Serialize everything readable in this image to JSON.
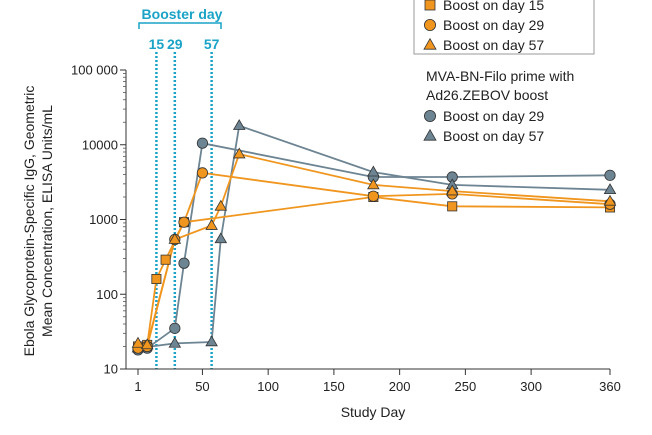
{
  "chart_data": {
    "type": "line",
    "title": "",
    "xlabel": "Study Day",
    "ylabel_line1": "Ebola Glycoprotein-Specific IgG, Geometric",
    "ylabel_line2": "Mean Concentration, ELISA Units/mL",
    "x_scale": "linear",
    "y_scale": "log",
    "xlim": [
      1,
      360
    ],
    "ylim": [
      10,
      100000
    ],
    "x_ticks": [
      1,
      50,
      100,
      150,
      200,
      250,
      300,
      360
    ],
    "x_tick_labels": [
      "1",
      "50",
      "100",
      "150",
      "200",
      "250",
      "300",
      "360"
    ],
    "y_ticks": [
      10,
      100,
      1000,
      10000,
      100000
    ],
    "y_tick_labels": [
      "10",
      "100",
      "1000",
      "10000",
      "100 000"
    ],
    "booster": {
      "title": "Booster day",
      "days": [
        15,
        29,
        57
      ],
      "labels": [
        "15",
        "29",
        "57"
      ],
      "color": "#1aa3c7"
    },
    "legend": {
      "group_title_line1": "MVA-BN-Filo prime with",
      "group_title_line2": "Ad26.ZEBOV boost"
    },
    "series": [
      {
        "name": "Boost on day 15",
        "color": "#f0961e",
        "marker": "square",
        "points": [
          {
            "x": 1,
            "y": 20
          },
          {
            "x": 8,
            "y": 21
          },
          {
            "x": 15,
            "y": 160
          },
          {
            "x": 22,
            "y": 290
          },
          {
            "x": 36,
            "y": 920
          },
          {
            "x": 180,
            "y": 2000
          },
          {
            "x": 240,
            "y": 1500
          },
          {
            "x": 360,
            "y": 1450
          }
        ]
      },
      {
        "name": "Boost on day 29",
        "color": "#f0961e",
        "marker": "circle",
        "points": [
          {
            "x": 1,
            "y": 19
          },
          {
            "x": 8,
            "y": 20
          },
          {
            "x": 29,
            "y": 540
          },
          {
            "x": 36,
            "y": 920
          },
          {
            "x": 50,
            "y": 4200
          },
          {
            "x": 180,
            "y": 2050
          },
          {
            "x": 240,
            "y": 2200
          },
          {
            "x": 360,
            "y": 1600
          }
        ]
      },
      {
        "name": "Boost on day 57",
        "color": "#f0961e",
        "marker": "triangle",
        "points": [
          {
            "x": 1,
            "y": 22
          },
          {
            "x": 8,
            "y": 21
          },
          {
            "x": 29,
            "y": 540
          },
          {
            "x": 57,
            "y": 830
          },
          {
            "x": 64,
            "y": 1500
          },
          {
            "x": 78,
            "y": 7500
          },
          {
            "x": 180,
            "y": 2900
          },
          {
            "x": 240,
            "y": 2400
          },
          {
            "x": 360,
            "y": 1750
          }
        ]
      },
      {
        "name": "Boost on day 29",
        "group": "MVA-BN-Filo prime with Ad26.ZEBOV boost",
        "color": "#6d8493",
        "marker": "circle",
        "points": [
          {
            "x": 1,
            "y": 18
          },
          {
            "x": 8,
            "y": 19
          },
          {
            "x": 29,
            "y": 35
          },
          {
            "x": 36,
            "y": 260
          },
          {
            "x": 50,
            "y": 10500
          },
          {
            "x": 180,
            "y": 3700
          },
          {
            "x": 240,
            "y": 3700
          },
          {
            "x": 360,
            "y": 3900
          }
        ]
      },
      {
        "name": "Boost on day 57",
        "group": "MVA-BN-Filo prime with Ad26.ZEBOV boost",
        "color": "#6d8493",
        "marker": "triangle",
        "points": [
          {
            "x": 1,
            "y": 19
          },
          {
            "x": 29,
            "y": 22
          },
          {
            "x": 57,
            "y": 23
          },
          {
            "x": 64,
            "y": 550
          },
          {
            "x": 78,
            "y": 18000
          },
          {
            "x": 180,
            "y": 4300
          },
          {
            "x": 240,
            "y": 2900
          },
          {
            "x": 360,
            "y": 2500
          }
        ]
      }
    ]
  }
}
